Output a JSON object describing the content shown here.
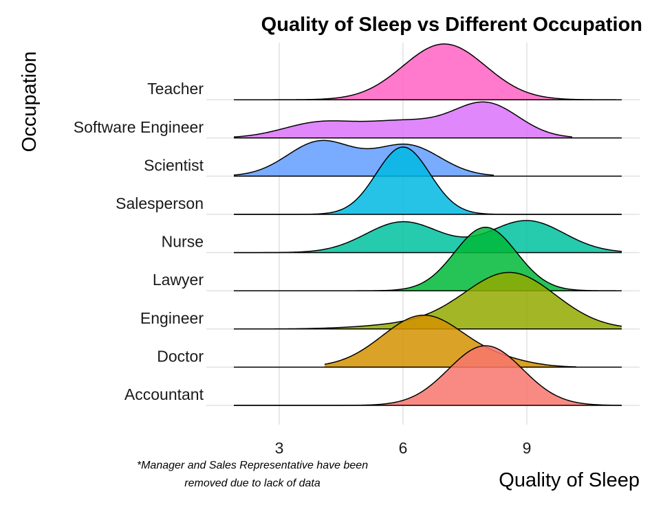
{
  "chart_data": {
    "type": "ridgeline",
    "title": "Quality of Sleep vs Different Occupation",
    "xlabel": "Quality of Sleep",
    "ylabel": "Occupation",
    "caption_lines": [
      "*Manager and Sales Representative have been",
      "removed due to lack of data"
    ],
    "xlim": [
      1.9,
      11.3
    ],
    "x_ticks": [
      3,
      6,
      9
    ],
    "grid": true,
    "legend": "none",
    "categories": [
      "Accountant",
      "Doctor",
      "Engineer",
      "Lawyer",
      "Nurse",
      "Salesperson",
      "Scientist",
      "Software Engineer",
      "Teacher"
    ],
    "series": [
      {
        "name": "Accountant",
        "color": "#F8766D",
        "peaks": [
          {
            "x": 8.0,
            "height": 1.55,
            "width": 0.9
          }
        ]
      },
      {
        "name": "Doctor",
        "color": "#D39200",
        "peaks": [
          {
            "x": 6.5,
            "height": 1.35,
            "width": 1.0
          },
          {
            "x": 8.5,
            "height": 0.12,
            "width": 0.7
          }
        ],
        "range": [
          4.1,
          10.2
        ]
      },
      {
        "name": "Engineer",
        "color": "#93AA00",
        "peaks": [
          {
            "x": 8.6,
            "height": 1.45,
            "width": 1.1
          },
          {
            "x": 6.3,
            "height": 0.12,
            "width": 1.2
          }
        ]
      },
      {
        "name": "Lawyer",
        "color": "#00BA38",
        "peaks": [
          {
            "x": 8.0,
            "height": 1.65,
            "width": 0.75
          }
        ]
      },
      {
        "name": "Nurse",
        "color": "#00C19F",
        "peaks": [
          {
            "x": 6.0,
            "height": 0.8,
            "width": 0.9
          },
          {
            "x": 9.0,
            "height": 0.83,
            "width": 0.9
          }
        ]
      },
      {
        "name": "Salesperson",
        "color": "#00B9E3",
        "peaks": [
          {
            "x": 6.0,
            "height": 1.75,
            "width": 0.65
          }
        ]
      },
      {
        "name": "Scientist",
        "color": "#619CFF",
        "peaks": [
          {
            "x": 4.0,
            "height": 0.9,
            "width": 0.8
          },
          {
            "x": 6.1,
            "height": 0.8,
            "width": 0.8
          }
        ],
        "range": [
          1.9,
          8.2
        ]
      },
      {
        "name": "Software Engineer",
        "color": "#DB72FB",
        "peaks": [
          {
            "x": 4.0,
            "height": 0.4,
            "width": 0.9
          },
          {
            "x": 6.0,
            "height": 0.4,
            "width": 0.9
          },
          {
            "x": 8.0,
            "height": 0.9,
            "width": 0.8
          }
        ],
        "range": [
          1.9,
          10.1
        ]
      },
      {
        "name": "Teacher",
        "color": "#FF61C3",
        "peaks": [
          {
            "x": 7.0,
            "height": 1.45,
            "width": 1.0
          }
        ]
      }
    ]
  }
}
